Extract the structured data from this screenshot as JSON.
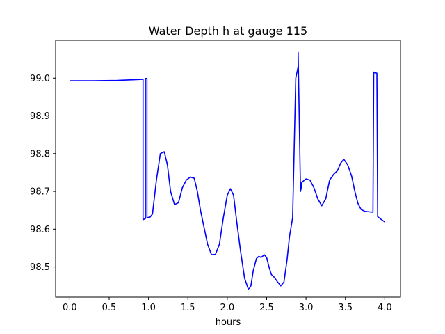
{
  "chart_data": {
    "type": "line",
    "title": "Water Depth h at gauge 115",
    "xlabel": "hours",
    "ylabel": "",
    "xlim": [
      -0.18,
      4.2
    ],
    "ylim": [
      98.42,
      99.1
    ],
    "xticks": [
      0.0,
      0.5,
      1.0,
      1.5,
      2.0,
      2.5,
      3.0,
      3.5,
      4.0
    ],
    "xtick_labels": [
      "0.0",
      "0.5",
      "1.0",
      "1.5",
      "2.0",
      "2.5",
      "3.0",
      "3.5",
      "4.0"
    ],
    "yticks": [
      98.5,
      98.6,
      98.7,
      98.8,
      98.9,
      99.0
    ],
    "ytick_labels": [
      "98.5",
      "98.6",
      "98.7",
      "98.8",
      "98.9",
      "99.0"
    ],
    "grid": false,
    "series": [
      {
        "color": "#0000ff",
        "x": [
          0.0,
          0.3,
          0.6,
          0.85,
          0.93,
          0.93,
          0.96,
          0.96,
          0.98,
          0.98,
          1.02,
          1.05,
          1.1,
          1.15,
          1.2,
          1.24,
          1.28,
          1.33,
          1.38,
          1.43,
          1.48,
          1.53,
          1.58,
          1.62,
          1.66,
          1.7,
          1.75,
          1.8,
          1.85,
          1.9,
          1.95,
          2.0,
          2.04,
          2.08,
          2.12,
          2.17,
          2.22,
          2.27,
          2.3,
          2.33,
          2.37,
          2.4,
          2.43,
          2.47,
          2.5,
          2.53,
          2.56,
          2.6,
          2.64,
          2.68,
          2.72,
          2.76,
          2.79,
          2.83,
          2.87,
          2.9,
          2.9,
          2.93,
          2.94,
          2.94,
          2.97,
          3.0,
          3.05,
          3.1,
          3.15,
          3.2,
          3.25,
          3.3,
          3.35,
          3.4,
          3.44,
          3.48,
          3.53,
          3.58,
          3.62,
          3.66,
          3.7,
          3.75,
          3.8,
          3.85,
          3.86,
          3.86,
          3.9,
          3.91,
          3.91,
          3.96,
          4.0
        ],
        "y": [
          98.993,
          98.993,
          98.994,
          98.996,
          98.997,
          98.625,
          98.628,
          98.999,
          98.999,
          98.63,
          98.632,
          98.64,
          98.73,
          98.8,
          98.805,
          98.77,
          98.7,
          98.665,
          98.67,
          98.71,
          98.73,
          98.738,
          98.735,
          98.7,
          98.65,
          98.61,
          98.56,
          98.532,
          98.533,
          98.56,
          98.63,
          98.69,
          98.707,
          98.69,
          98.62,
          98.54,
          98.47,
          98.44,
          98.45,
          98.49,
          98.522,
          98.528,
          98.525,
          98.532,
          98.525,
          98.5,
          98.48,
          98.472,
          98.46,
          98.45,
          98.46,
          98.52,
          98.58,
          98.63,
          99.0,
          99.03,
          99.068,
          98.7,
          98.71,
          98.722,
          98.728,
          98.733,
          98.73,
          98.71,
          98.68,
          98.662,
          98.68,
          98.73,
          98.745,
          98.755,
          98.775,
          98.785,
          98.77,
          98.74,
          98.7,
          98.668,
          98.652,
          98.647,
          98.646,
          98.645,
          99.016,
          99.015,
          99.013,
          98.638,
          98.633,
          98.625,
          98.619
        ]
      }
    ]
  }
}
